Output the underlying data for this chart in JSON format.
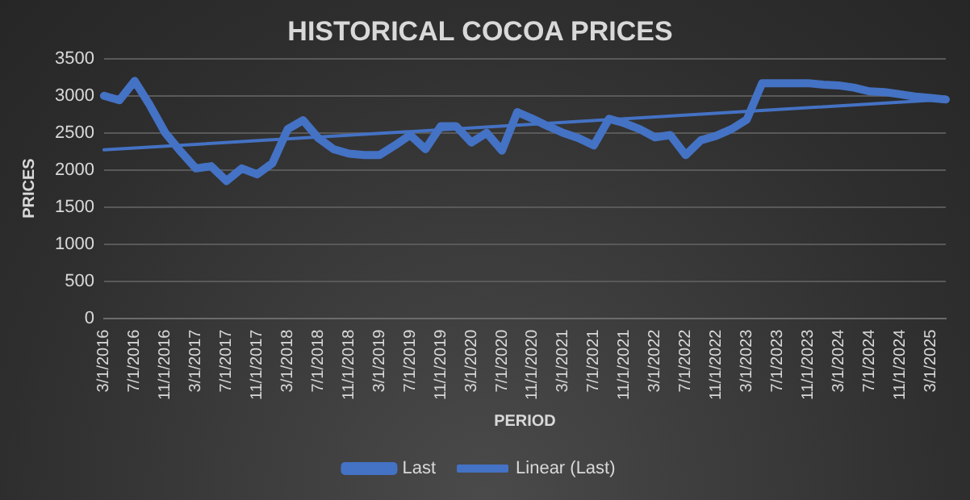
{
  "chart_data": {
    "type": "line",
    "title": "HISTORICAL COCOA PRICES",
    "xlabel": "PERIOD",
    "ylabel": "PRICES",
    "categories": [
      "3/1/2016",
      null,
      "7/1/2016",
      null,
      "11/1/2016",
      null,
      "3/1/2017",
      null,
      "7/1/2017",
      null,
      "11/1/2017",
      null,
      "3/1/2018",
      null,
      "7/1/2018",
      null,
      "11/1/2018",
      null,
      "3/1/2019",
      null,
      "7/1/2019",
      null,
      "11/1/2019",
      null,
      "3/1/2020",
      null,
      "7/1/2020",
      null,
      "11/1/2020",
      null,
      "3/1/2021",
      null,
      "7/1/2021",
      null,
      "11/1/2021",
      null,
      "3/1/2022",
      null,
      "7/1/2022",
      null,
      "11/1/2022",
      null,
      "3/1/2023",
      null,
      "7/1/2023",
      null,
      "11/1/2023",
      null,
      "3/1/2024",
      null,
      "7/1/2024",
      null,
      "11/1/2024",
      null,
      "3/1/2025",
      null
    ],
    "series": [
      {
        "name": "Last",
        "color": "#4472c4",
        "values": [
          3000,
          2940,
          3200,
          2870,
          2500,
          2250,
          2020,
          2050,
          1850,
          2020,
          1940,
          2090,
          2550,
          2670,
          2430,
          2280,
          2220,
          2200,
          2200,
          2330,
          2470,
          2280,
          2590,
          2590,
          2370,
          2500,
          2260,
          2780,
          2690,
          2590,
          2500,
          2430,
          2330,
          2690,
          2630,
          2550,
          2440,
          2470,
          2200,
          2400,
          2460,
          2550,
          2680,
          3170,
          3170,
          3170,
          3170,
          3150,
          3140,
          3110,
          3060,
          3050,
          3020,
          2990,
          2970,
          2950
        ]
      },
      {
        "name": "Linear (Last)",
        "color": "#4472c4",
        "line_style": "solid",
        "values": [
          2270,
          null,
          null,
          null,
          null,
          null,
          null,
          null,
          null,
          null,
          null,
          null,
          null,
          null,
          null,
          null,
          null,
          null,
          null,
          null,
          null,
          null,
          null,
          null,
          null,
          null,
          null,
          null,
          null,
          null,
          null,
          null,
          null,
          null,
          null,
          null,
          null,
          null,
          null,
          null,
          null,
          null,
          null,
          null,
          null,
          null,
          null,
          null,
          null,
          null,
          null,
          null,
          null,
          null,
          null,
          2950
        ]
      }
    ],
    "ylim": [
      0,
      3500
    ],
    "yticks": [
      0,
      500,
      1000,
      1500,
      2000,
      2500,
      3000,
      3500
    ],
    "grid": "y",
    "legend": "bottom",
    "marker": "none"
  }
}
